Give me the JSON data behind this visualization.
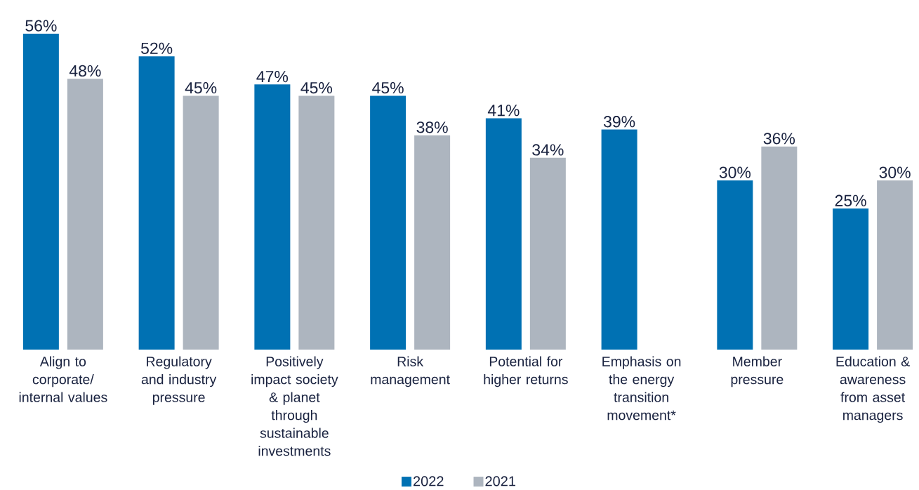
{
  "chart_data": {
    "type": "bar",
    "categories": [
      "Align to corporate/ internal values",
      "Regulatory and industry pressure",
      "Positively impact society & planet through sustainable investments",
      "Risk management",
      "Potential for higher returns",
      "Emphasis on the energy transition movement*",
      "Member pressure",
      "Education & awareness from asset managers"
    ],
    "series": [
      {
        "name": "2022",
        "color": "#0071b3",
        "values": [
          56,
          52,
          47,
          45,
          41,
          39,
          30,
          25
        ],
        "value_labels": [
          "56%",
          "52%",
          "47%",
          "45%",
          "41%",
          "39%",
          "30%",
          "25%"
        ]
      },
      {
        "name": "2021",
        "color": "#adb5bf",
        "values": [
          48,
          45,
          45,
          38,
          34,
          null,
          36,
          30
        ],
        "value_labels": [
          "48%",
          "45%",
          "45%",
          "38%",
          "34%",
          null,
          "36%",
          "30%"
        ]
      }
    ],
    "legend": "bottom"
  }
}
